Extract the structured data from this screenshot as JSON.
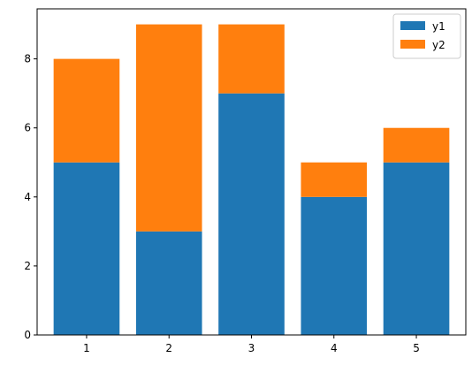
{
  "chart_data": {
    "type": "bar",
    "stacked": true,
    "categories": [
      "1",
      "2",
      "3",
      "4",
      "5"
    ],
    "series": [
      {
        "name": "y1",
        "values": [
          5,
          3,
          7,
          4,
          5
        ],
        "color": "#1f77b4"
      },
      {
        "name": "y2",
        "values": [
          3,
          6,
          2,
          1,
          1
        ],
        "color": "#ff7f0e"
      }
    ],
    "title": "",
    "xlabel": "",
    "ylabel": "",
    "ylim": [
      0,
      9.45
    ],
    "yticks": [
      0,
      2,
      4,
      6,
      8
    ],
    "grid": false,
    "legend_position": "top-right"
  }
}
